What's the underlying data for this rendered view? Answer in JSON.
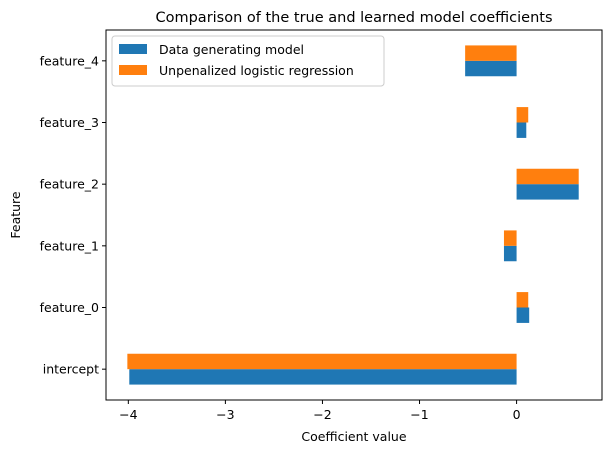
{
  "chart_data": {
    "type": "bar",
    "orientation": "horizontal",
    "title": "Comparison of the true and learned model coefficients",
    "xlabel": "Coefficient value",
    "ylabel": "Feature",
    "categories": [
      "intercept",
      "feature_0",
      "feature_1",
      "feature_2",
      "feature_3",
      "feature_4"
    ],
    "series": [
      {
        "name": "Data generating model",
        "color": "#1f77b4",
        "values": [
          -3.99,
          0.13,
          -0.13,
          0.64,
          0.1,
          -0.53
        ]
      },
      {
        "name": "Unpenalized logistic regression",
        "color": "#ff7f0e",
        "values": [
          -4.01,
          0.12,
          -0.13,
          0.64,
          0.12,
          -0.53
        ]
      }
    ],
    "xlim": [
      -4.23,
      0.88
    ],
    "xticks": [
      -4,
      -3,
      -2,
      -1,
      0
    ],
    "xtick_labels": [
      "−4",
      "−3",
      "−2",
      "−1",
      "0"
    ],
    "legend_position": "upper-left",
    "grid": false
  }
}
